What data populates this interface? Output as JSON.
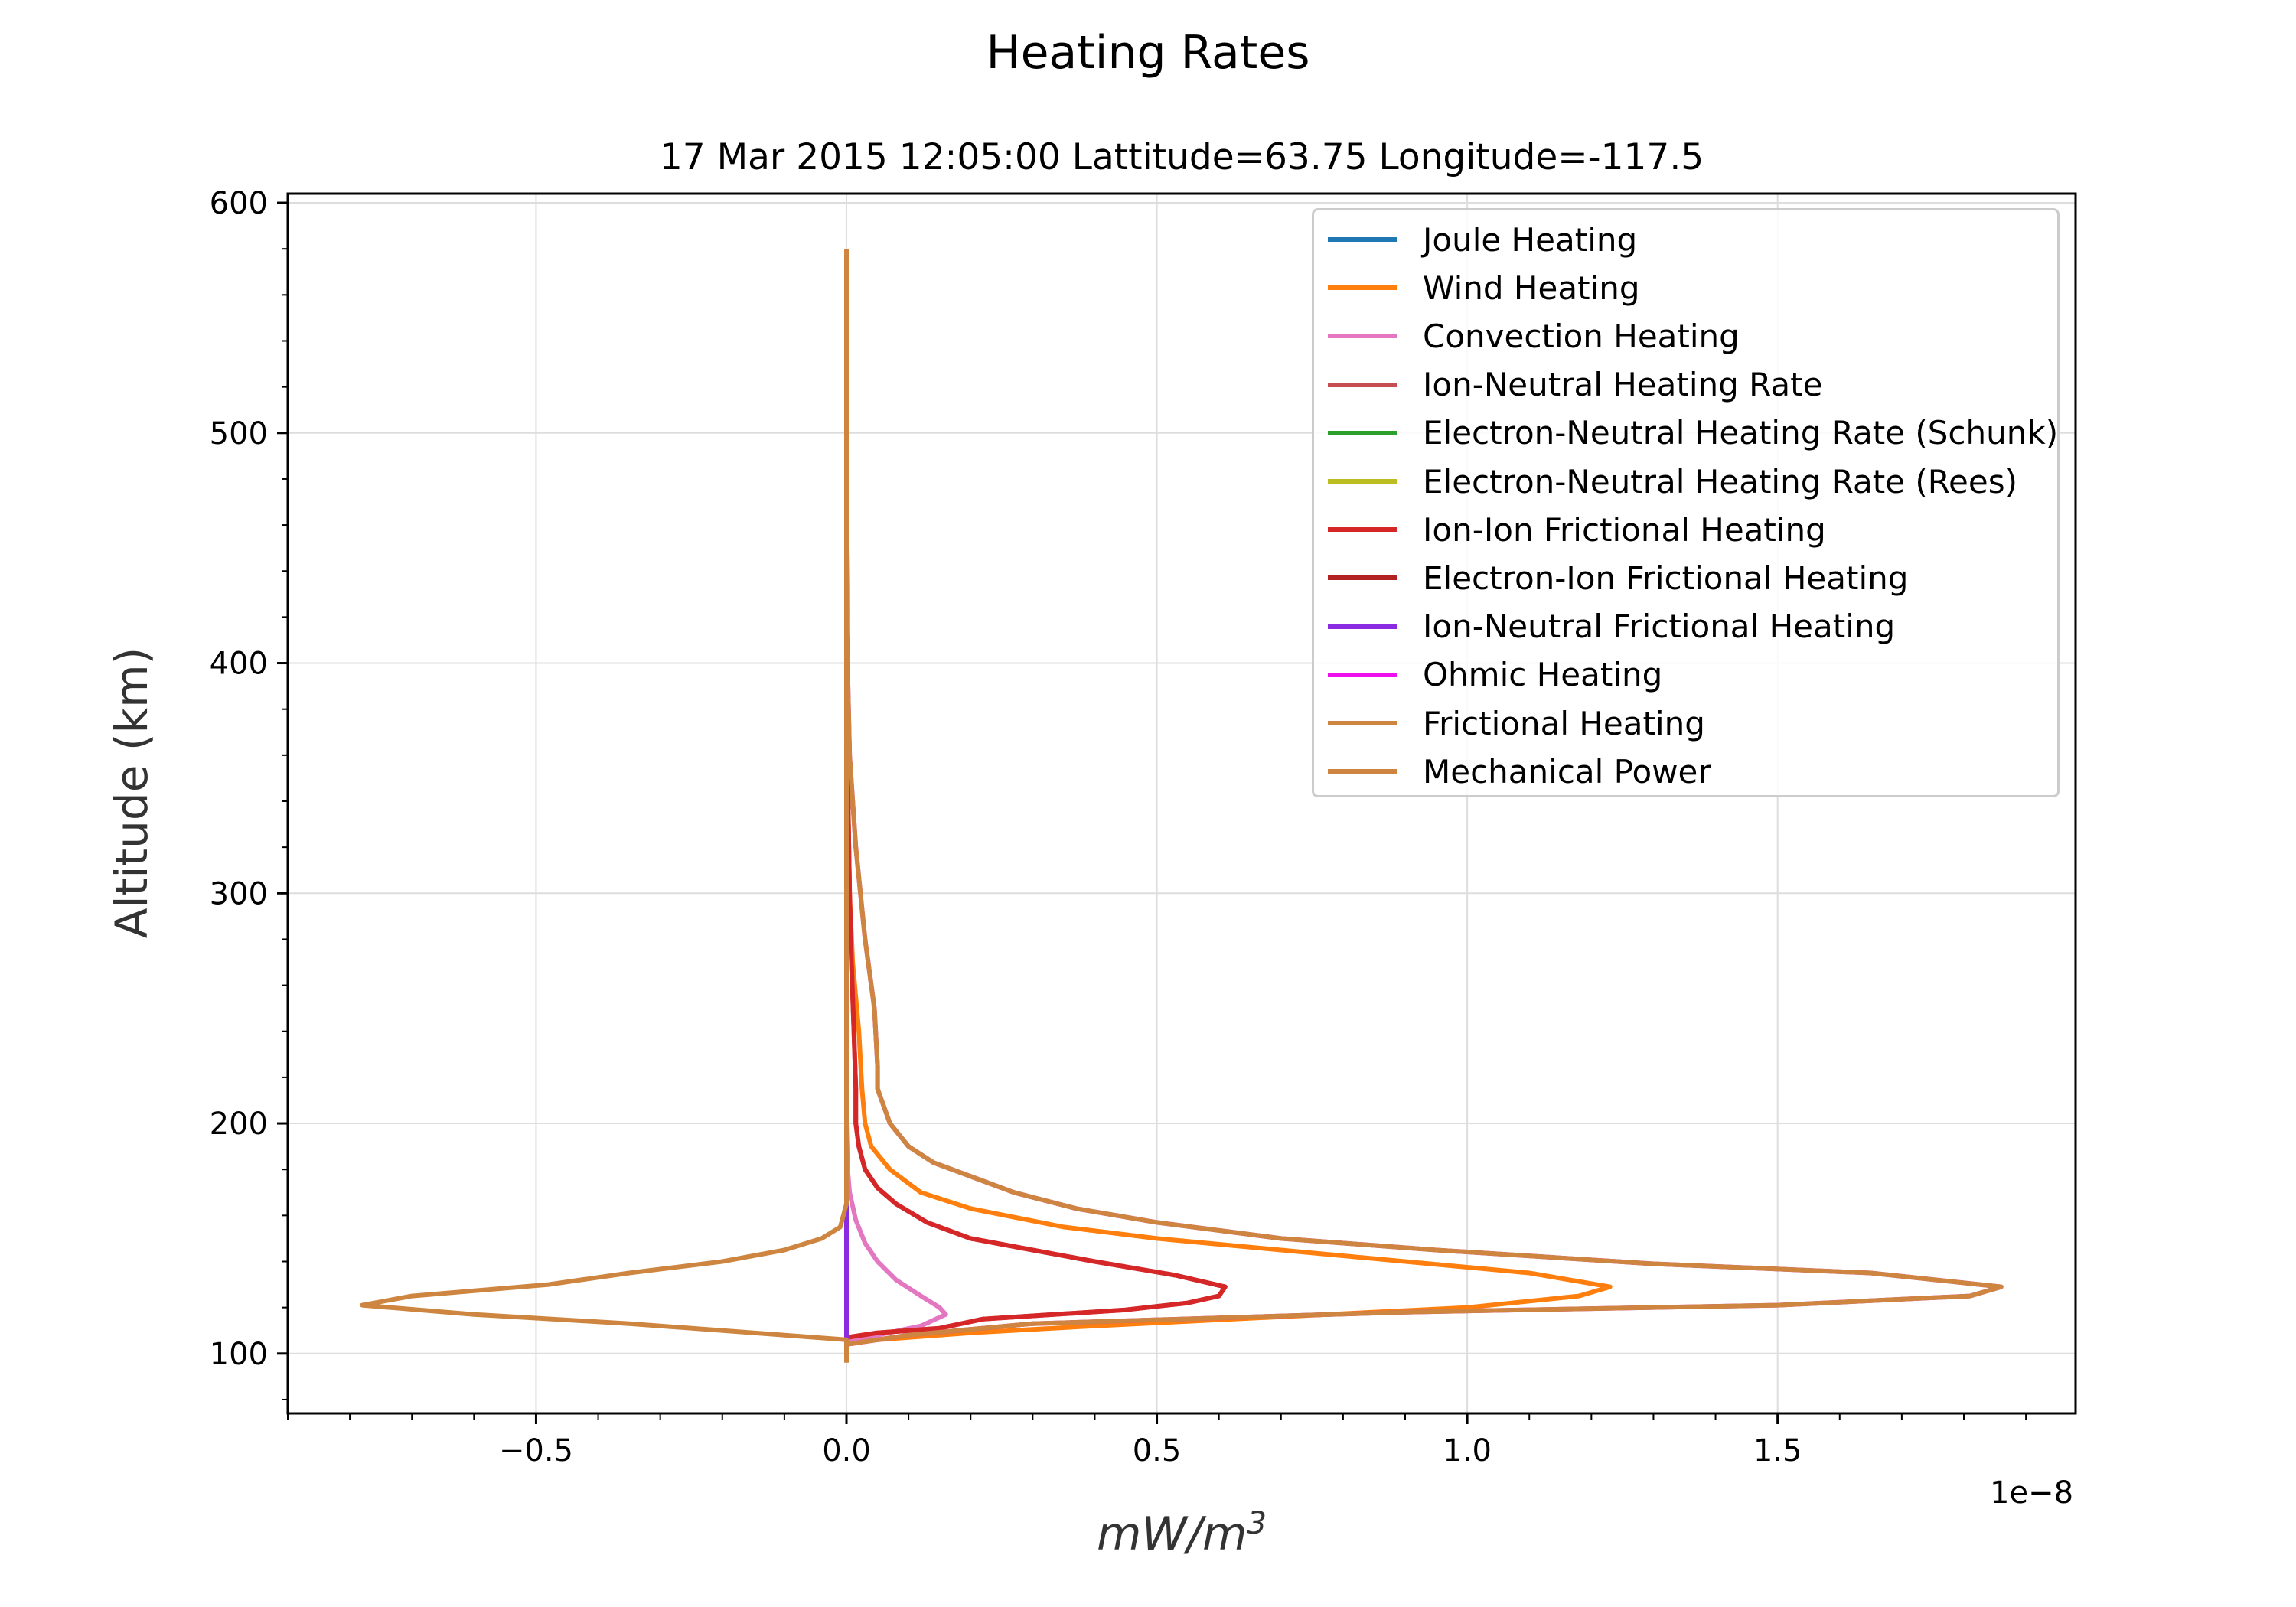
{
  "chart_data": {
    "type": "line",
    "title": "Heating Rates",
    "subtitle": "17 Mar 2015 12:05:00 Lattitude=63.75 Longitude=-117.5",
    "xlabel_base": "mW/m",
    "xlabel_exp": "3",
    "ylabel": "Altitude (km)",
    "x_offset_label": "1e−8",
    "xlim": [
      -0.9,
      1.98
    ],
    "ylim": [
      74,
      604
    ],
    "x_ticks": [
      -0.5,
      0.0,
      0.5,
      1.0,
      1.5
    ],
    "x_tick_labels": [
      "−0.5",
      "0.0",
      "0.5",
      "1.0",
      "1.5"
    ],
    "y_ticks": [
      100,
      200,
      300,
      400,
      500,
      600
    ],
    "y_tick_labels": [
      "100",
      "200",
      "300",
      "400",
      "500",
      "600"
    ],
    "grid": true,
    "legend_position": "top-right",
    "series": [
      {
        "name": "Joule Heating",
        "color": "#1f77b4",
        "points": [
          [
            0,
            97
          ],
          [
            0,
            150
          ],
          [
            0,
            300
          ],
          [
            0,
            580
          ]
        ]
      },
      {
        "name": "Wind Heating",
        "color": "#ff7f0e",
        "points": [
          [
            0,
            104
          ],
          [
            0.05,
            106
          ],
          [
            0.2,
            109
          ],
          [
            0.4,
            112
          ],
          [
            0.7,
            116
          ],
          [
            1.0,
            120
          ],
          [
            1.18,
            125
          ],
          [
            1.23,
            129
          ],
          [
            1.1,
            135
          ],
          [
            0.9,
            140
          ],
          [
            0.7,
            145
          ],
          [
            0.5,
            150
          ],
          [
            0.35,
            155
          ],
          [
            0.2,
            163
          ],
          [
            0.12,
            170
          ],
          [
            0.07,
            180
          ],
          [
            0.04,
            190
          ],
          [
            0.03,
            200
          ],
          [
            0.025,
            215
          ],
          [
            0.02,
            240
          ],
          [
            0.01,
            270
          ],
          [
            0.005,
            300
          ],
          [
            0.002,
            350
          ],
          [
            0,
            450
          ],
          [
            0,
            580
          ]
        ]
      },
      {
        "name": "Convection Heating",
        "color": "#e377c2",
        "points": [
          [
            0,
            106
          ],
          [
            0.05,
            108
          ],
          [
            0.12,
            112
          ],
          [
            0.16,
            117
          ],
          [
            0.15,
            120
          ],
          [
            0.12,
            125
          ],
          [
            0.08,
            132
          ],
          [
            0.05,
            140
          ],
          [
            0.03,
            148
          ],
          [
            0.015,
            158
          ],
          [
            0.005,
            170
          ],
          [
            0.002,
            180
          ],
          [
            0,
            200
          ],
          [
            0,
            580
          ]
        ]
      },
      {
        "name": "Ion-Neutral Heating Rate",
        "color": "#c44e52",
        "points": [
          [
            0,
            107
          ],
          [
            0.05,
            109
          ],
          [
            0.15,
            111
          ],
          [
            0.22,
            115
          ],
          [
            0.45,
            119
          ],
          [
            0.55,
            122
          ],
          [
            0.6,
            125
          ],
          [
            0.61,
            129
          ],
          [
            0.53,
            134
          ],
          [
            0.4,
            140
          ],
          [
            0.3,
            145
          ],
          [
            0.2,
            150
          ],
          [
            0.13,
            157
          ],
          [
            0.08,
            165
          ],
          [
            0.05,
            172
          ],
          [
            0.03,
            180
          ],
          [
            0.02,
            190
          ],
          [
            0.015,
            200
          ],
          [
            0.015,
            215
          ],
          [
            0.012,
            240
          ],
          [
            0.008,
            270
          ],
          [
            0.005,
            300
          ],
          [
            0.002,
            350
          ],
          [
            0,
            450
          ],
          [
            0,
            580
          ]
        ]
      },
      {
        "name": "Electron-Neutral Heating Rate (Schunk)",
        "color": "#2ca02c",
        "points": [
          [
            0,
            97
          ],
          [
            0,
            580
          ]
        ]
      },
      {
        "name": "Electron-Neutral Heating Rate (Rees)",
        "color": "#bcbd22",
        "points": [
          [
            0,
            97
          ],
          [
            0,
            580
          ]
        ]
      },
      {
        "name": "Ion-Ion Frictional Heating",
        "color": "#d62728",
        "points": [
          [
            0,
            107
          ],
          [
            0.05,
            109
          ],
          [
            0.15,
            111
          ],
          [
            0.22,
            115
          ],
          [
            0.45,
            119
          ],
          [
            0.55,
            122
          ],
          [
            0.6,
            125
          ],
          [
            0.61,
            129
          ],
          [
            0.53,
            134
          ],
          [
            0.4,
            140
          ],
          [
            0.3,
            145
          ],
          [
            0.2,
            150
          ],
          [
            0.13,
            157
          ],
          [
            0.08,
            165
          ],
          [
            0.05,
            172
          ],
          [
            0.03,
            180
          ],
          [
            0.02,
            190
          ],
          [
            0.015,
            200
          ],
          [
            0.015,
            215
          ],
          [
            0.012,
            240
          ],
          [
            0.008,
            270
          ],
          [
            0.005,
            300
          ],
          [
            0.002,
            350
          ],
          [
            0,
            450
          ],
          [
            0,
            580
          ]
        ]
      },
      {
        "name": "Electron-Ion Frictional Heating",
        "color": "#b22222",
        "points": [
          [
            0,
            97
          ],
          [
            0,
            580
          ]
        ]
      },
      {
        "name": "Ion-Neutral Frictional Heating",
        "color": "#8a2be2",
        "points": [
          [
            0,
            100
          ],
          [
            0,
            110
          ],
          [
            0,
            150
          ],
          [
            0,
            200
          ],
          [
            0,
            350
          ]
        ]
      },
      {
        "name": "Ohmic Heating",
        "color": "#ee10ee",
        "points": [
          [
            0,
            104
          ],
          [
            0.1,
            108
          ],
          [
            0.3,
            113
          ],
          [
            0.9,
            118
          ],
          [
            1.5,
            121
          ],
          [
            1.81,
            125
          ],
          [
            1.86,
            129
          ],
          [
            1.65,
            135
          ],
          [
            1.3,
            139
          ],
          [
            0.95,
            145
          ],
          [
            0.7,
            150
          ],
          [
            0.5,
            157
          ],
          [
            0.37,
            163
          ],
          [
            0.27,
            170
          ],
          [
            0.2,
            177
          ],
          [
            0.14,
            183
          ],
          [
            0.1,
            190
          ],
          [
            0.07,
            200
          ],
          [
            0.05,
            215
          ],
          [
            0.05,
            225
          ],
          [
            0.045,
            250
          ],
          [
            0.03,
            280
          ],
          [
            0.015,
            320
          ],
          [
            0.005,
            360
          ],
          [
            0,
            420
          ],
          [
            0,
            580
          ]
        ]
      },
      {
        "name": "Frictional Heating",
        "color": "#cd853f",
        "points": [
          [
            0,
            96
          ],
          [
            0,
            106
          ],
          [
            -0.1,
            108
          ],
          [
            -0.35,
            113
          ],
          [
            -0.6,
            117
          ],
          [
            -0.78,
            121
          ],
          [
            -0.7,
            125
          ],
          [
            -0.48,
            130
          ],
          [
            -0.35,
            135
          ],
          [
            -0.2,
            140
          ],
          [
            -0.1,
            145
          ],
          [
            -0.04,
            150
          ],
          [
            -0.01,
            155
          ],
          [
            0,
            165
          ],
          [
            0,
            580
          ]
        ]
      },
      {
        "name": "Mechanical Power",
        "color": "#cd853f",
        "points": [
          [
            0,
            104
          ],
          [
            0.1,
            108
          ],
          [
            0.3,
            113
          ],
          [
            0.9,
            118
          ],
          [
            1.5,
            121
          ],
          [
            1.81,
            125
          ],
          [
            1.86,
            129
          ],
          [
            1.65,
            135
          ],
          [
            1.3,
            139
          ],
          [
            0.95,
            145
          ],
          [
            0.7,
            150
          ],
          [
            0.5,
            157
          ],
          [
            0.37,
            163
          ],
          [
            0.27,
            170
          ],
          [
            0.2,
            177
          ],
          [
            0.14,
            183
          ],
          [
            0.1,
            190
          ],
          [
            0.07,
            200
          ],
          [
            0.05,
            215
          ],
          [
            0.05,
            225
          ],
          [
            0.045,
            250
          ],
          [
            0.03,
            280
          ],
          [
            0.015,
            320
          ],
          [
            0.005,
            360
          ],
          [
            0,
            420
          ],
          [
            0,
            580
          ]
        ]
      }
    ]
  }
}
